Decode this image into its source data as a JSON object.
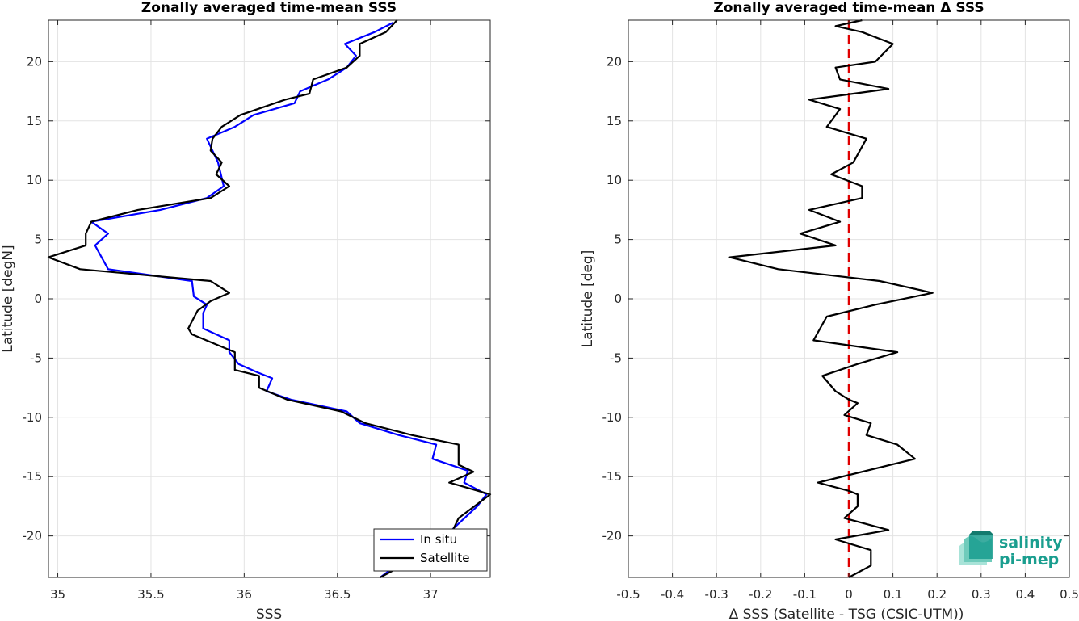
{
  "colors": {
    "in_situ": "#0000ff",
    "satellite": "#000000",
    "zero_line": "#e00000",
    "logo": "#1a9e8f"
  },
  "logo": {
    "line1": "salinity",
    "line2": "pi-mep"
  },
  "chart_data": [
    {
      "type": "line",
      "title": "Zonally averaged time-mean SSS",
      "xlabel": "SSS",
      "ylabel": "Latitude [degN]",
      "xlim": [
        34.95,
        37.32
      ],
      "ylim": [
        -23.5,
        23.5
      ],
      "xticks": [
        35,
        35.5,
        36,
        36.5,
        37
      ],
      "xtick_labels": [
        "35",
        "35.5",
        "36",
        "36.5",
        "37"
      ],
      "yticks": [
        -20,
        -15,
        -10,
        -5,
        0,
        5,
        10,
        15,
        20
      ],
      "ytick_labels": [
        "-20",
        "-15",
        "-10",
        "-5",
        "0",
        "5",
        "10",
        "15",
        "20"
      ],
      "grid": true,
      "legend_position": "bottom-right",
      "series": [
        {
          "name": "In situ",
          "color": "#0000ff",
          "points": [
            [
              36.73,
              -23.5
            ],
            [
              36.9,
              -21.5
            ],
            [
              37.08,
              -20
            ],
            [
              37.25,
              -17.5
            ],
            [
              37.3,
              -16.5
            ],
            [
              37.18,
              -15.5
            ],
            [
              37.2,
              -14.5
            ],
            [
              37.01,
              -13.5
            ],
            [
              37.03,
              -12.3
            ],
            [
              36.83,
              -11.5
            ],
            [
              36.62,
              -10.5
            ],
            [
              36.55,
              -9.5
            ],
            [
              36.25,
              -8.5
            ],
            [
              36.12,
              -7.8
            ],
            [
              36.15,
              -6.7
            ],
            [
              36.07,
              -6.2
            ],
            [
              35.97,
              -5.5
            ],
            [
              35.92,
              -4.5
            ],
            [
              35.92,
              -3.5
            ],
            [
              35.78,
              -2.5
            ],
            [
              35.78,
              -1.2
            ],
            [
              35.8,
              -0.5
            ],
            [
              35.73,
              0.2
            ],
            [
              35.72,
              1.5
            ],
            [
              35.27,
              2.5
            ],
            [
              35.2,
              4.5
            ],
            [
              35.27,
              5.5
            ],
            [
              35.18,
              6.5
            ],
            [
              35.55,
              7.5
            ],
            [
              35.8,
              8.5
            ],
            [
              35.89,
              9.5
            ],
            [
              35.86,
              11.5
            ],
            [
              35.8,
              13.5
            ],
            [
              35.95,
              14.5
            ],
            [
              36.05,
              15.5
            ],
            [
              36.27,
              16.5
            ],
            [
              36.3,
              17.5
            ],
            [
              36.45,
              18.5
            ],
            [
              36.55,
              19.5
            ],
            [
              36.6,
              20.5
            ],
            [
              36.54,
              21.5
            ],
            [
              36.7,
              22.5
            ],
            [
              36.8,
              23.3
            ]
          ]
        },
        {
          "name": "Satellite",
          "color": "#000000",
          "points": [
            [
              36.73,
              -23.5
            ],
            [
              37.0,
              -21.2
            ],
            [
              37.12,
              -19.5
            ],
            [
              37.15,
              -18.5
            ],
            [
              37.32,
              -16.5
            ],
            [
              37.1,
              -15.5
            ],
            [
              37.23,
              -14.6
            ],
            [
              37.15,
              -14
            ],
            [
              37.15,
              -12.3
            ],
            [
              36.9,
              -11.5
            ],
            [
              36.65,
              -10.5
            ],
            [
              36.52,
              -9.5
            ],
            [
              36.23,
              -8.5
            ],
            [
              36.08,
              -7.5
            ],
            [
              36.08,
              -6.5
            ],
            [
              35.95,
              -6
            ],
            [
              35.95,
              -4.5
            ],
            [
              35.72,
              -3
            ],
            [
              35.7,
              -2.5
            ],
            [
              35.75,
              -1
            ],
            [
              35.82,
              -0.2
            ],
            [
              35.92,
              0.5
            ],
            [
              35.82,
              1.5
            ],
            [
              35.12,
              2.5
            ],
            [
              34.95,
              3.5
            ],
            [
              35.15,
              4.5
            ],
            [
              35.15,
              5.5
            ],
            [
              35.18,
              6.5
            ],
            [
              35.43,
              7.5
            ],
            [
              35.82,
              8.5
            ],
            [
              35.92,
              9.5
            ],
            [
              35.85,
              10.5
            ],
            [
              35.88,
              11.5
            ],
            [
              35.82,
              12.5
            ],
            [
              35.83,
              13.5
            ],
            [
              35.88,
              14.5
            ],
            [
              35.98,
              15.5
            ],
            [
              36.22,
              16.8
            ],
            [
              36.35,
              17.3
            ],
            [
              36.37,
              18.5
            ],
            [
              36.55,
              19.5
            ],
            [
              36.62,
              20.5
            ],
            [
              36.62,
              21.5
            ],
            [
              36.76,
              22.5
            ],
            [
              36.82,
              23.5
            ]
          ]
        }
      ]
    },
    {
      "type": "line",
      "title": "Zonally averaged time-mean Δ SSS",
      "xlabel": "Δ SSS (Satellite - TSG (CSIC-UTM))",
      "ylabel": "Latitude [deg]",
      "xlim": [
        -0.5,
        0.5
      ],
      "ylim": [
        -23.5,
        23.5
      ],
      "xticks": [
        -0.5,
        -0.4,
        -0.3,
        -0.2,
        -0.1,
        0,
        0.1,
        0.2,
        0.3,
        0.4,
        0.5
      ],
      "xtick_labels": [
        "-0.5",
        "-0.4",
        "-0.3",
        "-0.2",
        "-0.1",
        "0",
        "0.1",
        "0.2",
        "0.3",
        "0.4",
        "0.5"
      ],
      "yticks": [
        -20,
        -15,
        -10,
        -5,
        0,
        5,
        10,
        15,
        20
      ],
      "ytick_labels": [
        "-20",
        "-15",
        "-10",
        "-5",
        "0",
        "5",
        "10",
        "15",
        "20"
      ],
      "grid": true,
      "reference_line": {
        "x": 0,
        "style": "dashed",
        "color": "#e00000"
      },
      "series": [
        {
          "color": "#000000",
          "points": [
            [
              0,
              -23.5
            ],
            [
              0.05,
              -22.5
            ],
            [
              0.05,
              -21.5
            ],
            [
              0.05,
              -21.2
            ],
            [
              -0.03,
              -20.3
            ],
            [
              0.09,
              -19.5
            ],
            [
              -0.01,
              -18.5
            ],
            [
              0.02,
              -17.5
            ],
            [
              0.02,
              -16.5
            ],
            [
              0,
              -16.2
            ],
            [
              -0.07,
              -15.5
            ],
            [
              0.15,
              -13.5
            ],
            [
              0.11,
              -12.3
            ],
            [
              0.04,
              -11.5
            ],
            [
              0.05,
              -10.5
            ],
            [
              -0.01,
              -9.8
            ],
            [
              0.02,
              -8.8
            ],
            [
              0,
              -8.5
            ],
            [
              -0.03,
              -7.8
            ],
            [
              -0.06,
              -6.5
            ],
            [
              0.02,
              -5.5
            ],
            [
              0.11,
              -4.5
            ],
            [
              -0.08,
              -3.5
            ],
            [
              -0.05,
              -1.5
            ],
            [
              0.06,
              -0.5
            ],
            [
              0.19,
              0.5
            ],
            [
              0.07,
              1.5
            ],
            [
              -0.16,
              2.5
            ],
            [
              -0.27,
              3.5
            ],
            [
              -0.03,
              4.5
            ],
            [
              -0.11,
              5.5
            ],
            [
              -0.02,
              6.5
            ],
            [
              -0.09,
              7.5
            ],
            [
              0.03,
              8.5
            ],
            [
              0.03,
              9.5
            ],
            [
              -0.04,
              10.5
            ],
            [
              0.01,
              11.5
            ],
            [
              0.04,
              13.5
            ],
            [
              -0.05,
              14.5
            ],
            [
              -0.02,
              16
            ],
            [
              -0.09,
              16.8
            ],
            [
              0.09,
              17.7
            ],
            [
              -0.02,
              18.5
            ],
            [
              -0.03,
              19.5
            ],
            [
              0.06,
              20
            ],
            [
              0.1,
              21.5
            ],
            [
              0.03,
              22.5
            ],
            [
              -0.03,
              23
            ],
            [
              0.03,
              23.5
            ]
          ]
        }
      ]
    }
  ]
}
